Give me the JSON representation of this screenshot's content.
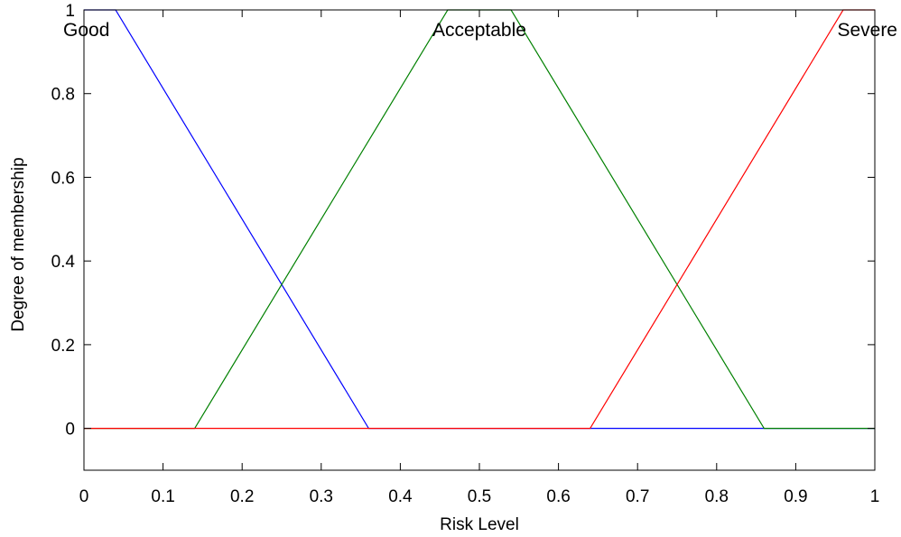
{
  "chart_data": {
    "type": "line",
    "xlabel": "Risk Level",
    "ylabel": "Degree of membership",
    "xlim": [
      0,
      1
    ],
    "ylim": [
      -0.1,
      1
    ],
    "x_ticks": [
      0,
      0.1,
      0.2,
      0.3,
      0.4,
      0.5,
      0.6,
      0.7,
      0.8,
      0.9,
      1
    ],
    "x_tick_labels": [
      "0",
      "0.1",
      "0.2",
      "0.3",
      "0.4",
      "0.5",
      "0.6",
      "0.7",
      "0.8",
      "0.9",
      "1"
    ],
    "y_ticks": [
      0,
      0.2,
      0.4,
      0.6,
      0.8,
      1
    ],
    "y_tick_labels": [
      "0",
      "0.2",
      "0.4",
      "0.6",
      "0.8",
      "1"
    ],
    "grid": false,
    "series": [
      {
        "name": "Good",
        "color": "#0000ff",
        "points": [
          [
            0,
            1
          ],
          [
            0.04,
            1
          ],
          [
            0.36,
            0
          ],
          [
            1,
            0
          ]
        ]
      },
      {
        "name": "Acceptable",
        "color": "#008000",
        "points": [
          [
            0,
            0
          ],
          [
            0.14,
            0
          ],
          [
            0.46,
            1
          ],
          [
            0.54,
            1
          ],
          [
            0.86,
            0
          ],
          [
            1,
            0
          ]
        ]
      },
      {
        "name": "Severe",
        "color": "#ff0000",
        "points": [
          [
            0,
            0
          ],
          [
            0.64,
            0
          ],
          [
            0.96,
            1
          ],
          [
            1,
            1
          ]
        ]
      }
    ]
  }
}
